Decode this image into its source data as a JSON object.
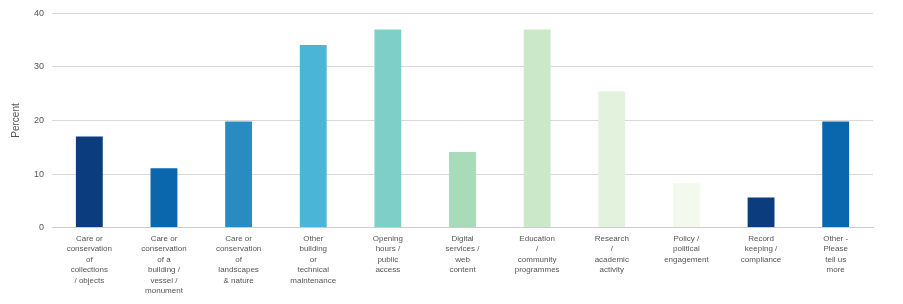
{
  "chart_data": {
    "type": "bar",
    "ylabel": "Percent",
    "categories": [
      [
        "Care or",
        "conservation",
        "of",
        "collections",
        "/ objects"
      ],
      [
        "Care or",
        "conservation",
        "of a",
        "building /",
        "vessel /",
        "monument"
      ],
      [
        "Care or",
        "conservation",
        "of",
        "landscapes",
        "& nature"
      ],
      [
        "Other",
        "building",
        "or",
        "technical",
        "maintenance"
      ],
      [
        "Opening",
        "hours /",
        "public",
        "access"
      ],
      [
        "Digital",
        "services /",
        "web",
        "content"
      ],
      [
        "Education",
        "/",
        "community",
        "programmes"
      ],
      [
        "Research",
        "/",
        "academic",
        "activity"
      ],
      [
        "Policy /",
        "political",
        "engagement"
      ],
      [
        "Record",
        "keeping /",
        "compliance"
      ],
      [
        "Other -",
        "Please",
        "tell us",
        "more"
      ]
    ],
    "values": [
      17,
      11.1,
      19.8,
      34.1,
      37,
      14.1,
      37,
      25.4,
      8.3,
      5.6,
      19.8
    ],
    "colors": [
      "#0b3d7e",
      "#0a66ad",
      "#2a8bc0",
      "#4ab5d6",
      "#7ecfc8",
      "#a8dcb8",
      "#cbe9c8",
      "#e2f2dc",
      "#f4f9ee",
      "#0b3d7e",
      "#0a66ad"
    ],
    "ylim": [
      0,
      40
    ],
    "yticks": [
      0,
      10,
      20,
      30,
      40
    ],
    "grid": true
  }
}
